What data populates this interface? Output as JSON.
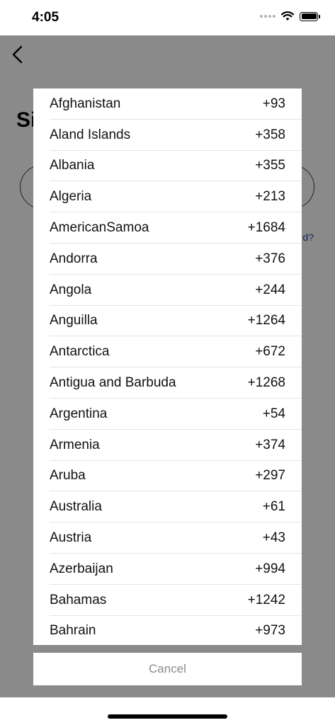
{
  "status_bar": {
    "time": "4:05",
    "icons": [
      "signal-icon",
      "wifi-icon",
      "battery-icon"
    ]
  },
  "background": {
    "back_icon": "chevron-left-icon",
    "title": "Si",
    "link_text": "rd?"
  },
  "country_picker": {
    "countries": [
      {
        "name": "Afghanistan",
        "code": "+93"
      },
      {
        "name": "Aland Islands",
        "code": "+358"
      },
      {
        "name": "Albania",
        "code": "+355"
      },
      {
        "name": "Algeria",
        "code": "+213"
      },
      {
        "name": "AmericanSamoa",
        "code": "+1684"
      },
      {
        "name": "Andorra",
        "code": "+376"
      },
      {
        "name": "Angola",
        "code": "+244"
      },
      {
        "name": "Anguilla",
        "code": "+1264"
      },
      {
        "name": "Antarctica",
        "code": "+672"
      },
      {
        "name": "Antigua and Barbuda",
        "code": "+1268"
      },
      {
        "name": "Argentina",
        "code": "+54"
      },
      {
        "name": "Armenia",
        "code": "+374"
      },
      {
        "name": "Aruba",
        "code": "+297"
      },
      {
        "name": "Australia",
        "code": "+61"
      },
      {
        "name": "Austria",
        "code": "+43"
      },
      {
        "name": "Azerbaijan",
        "code": "+994"
      },
      {
        "name": "Bahamas",
        "code": "+1242"
      },
      {
        "name": "Bahrain",
        "code": "+973"
      }
    ],
    "cancel_label": "Cancel"
  },
  "colors": {
    "overlay": "#757575",
    "link": "#1f4fa3",
    "cancel_text": "#8a8a8a"
  }
}
